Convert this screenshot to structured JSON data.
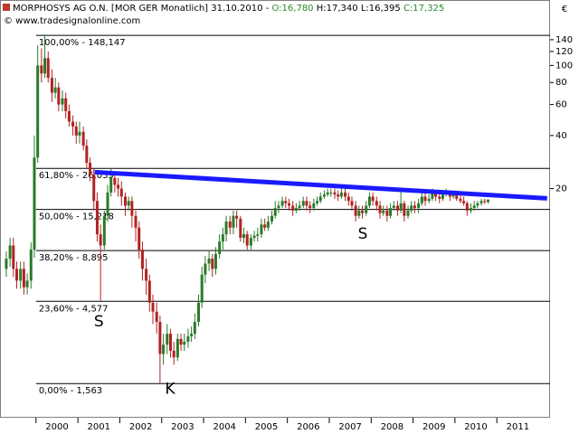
{
  "chart_data": {
    "type": "candlestick",
    "title": "MORPHOSYS AG O.N. [MOR GER Monatlich] 31.10.2010 -",
    "ohlc_labels": [
      "O:16,780",
      "H:17,340",
      "L:16,395",
      "C:17,325"
    ],
    "subtitle": "© www.tradesignalonline.com",
    "currency": "€",
    "up_color": "#2a7a2a",
    "down_color": "#b22222",
    "log_scale": true,
    "xlim": [
      1999.14,
      2012.27
    ],
    "xticks": [
      2000,
      2001,
      2002,
      2003,
      2004,
      2005,
      2006,
      2007,
      2008,
      2009,
      2010,
      2011
    ],
    "ylim": [
      1,
      165
    ],
    "yticks": [
      140,
      120,
      100,
      80,
      60,
      40,
      20
    ],
    "x": [
      1999.29,
      1999.38,
      1999.46,
      1999.54,
      1999.63,
      1999.71,
      1999.79,
      1999.88,
      1999.96,
      2000.04,
      2000.13,
      2000.21,
      2000.29,
      2000.38,
      2000.46,
      2000.54,
      2000.63,
      2000.71,
      2000.79,
      2000.88,
      2000.96,
      2001.04,
      2001.13,
      2001.21,
      2001.29,
      2001.38,
      2001.46,
      2001.54,
      2001.63,
      2001.71,
      2001.79,
      2001.88,
      2001.96,
      2002.04,
      2002.13,
      2002.21,
      2002.29,
      2002.38,
      2002.46,
      2002.54,
      2002.63,
      2002.71,
      2002.79,
      2002.88,
      2002.96,
      2003.04,
      2003.13,
      2003.21,
      2003.29,
      2003.38,
      2003.46,
      2003.54,
      2003.63,
      2003.71,
      2003.79,
      2003.88,
      2003.96,
      2004.04,
      2004.13,
      2004.21,
      2004.29,
      2004.38,
      2004.46,
      2004.54,
      2004.63,
      2004.71,
      2004.79,
      2004.88,
      2004.96,
      2005.04,
      2005.13,
      2005.21,
      2005.29,
      2005.38,
      2005.46,
      2005.54,
      2005.63,
      2005.71,
      2005.79,
      2005.88,
      2005.96,
      2006.04,
      2006.13,
      2006.21,
      2006.29,
      2006.38,
      2006.46,
      2006.54,
      2006.63,
      2006.71,
      2006.79,
      2006.88,
      2006.96,
      2007.04,
      2007.13,
      2007.21,
      2007.29,
      2007.38,
      2007.46,
      2007.54,
      2007.63,
      2007.71,
      2007.79,
      2007.88,
      2007.96,
      2008.04,
      2008.13,
      2008.21,
      2008.29,
      2008.38,
      2008.46,
      2008.54,
      2008.63,
      2008.71,
      2008.79,
      2008.88,
      2008.96,
      2009.04,
      2009.13,
      2009.21,
      2009.29,
      2009.38,
      2009.46,
      2009.54,
      2009.63,
      2009.71,
      2009.79,
      2009.88,
      2009.96,
      2010.04,
      2010.13,
      2010.21,
      2010.29,
      2010.38,
      2010.46,
      2010.54,
      2010.63,
      2010.71,
      2010.79
    ],
    "open": [
      7,
      8,
      9.5,
      7,
      6,
      7,
      5.5,
      6,
      9,
      30,
      100,
      90,
      110,
      85,
      70,
      75,
      60,
      65,
      55,
      48,
      45,
      40,
      42,
      35,
      28,
      24,
      17,
      11,
      9.5,
      14,
      19,
      23,
      21,
      20,
      18,
      16,
      17,
      14,
      12,
      9,
      7,
      6,
      4.5,
      4,
      3.5,
      2.3,
      2.6,
      3,
      2.4,
      2.2,
      2.8,
      2.6,
      2.7,
      2.9,
      3,
      3.5,
      4.5,
      6.5,
      7.5,
      8,
      7,
      8.5,
      10,
      11,
      13,
      12,
      14,
      13.5,
      10.5,
      11,
      9.5,
      10.5,
      10.8,
      11,
      12.5,
      12,
      13,
      14,
      15.5,
      16,
      17,
      16.5,
      16,
      15,
      15.5,
      16,
      17,
      16,
      15.5,
      16.5,
      17,
      18,
      18.5,
      19,
      19,
      18.5,
      18,
      19,
      18,
      17,
      16,
      14,
      15,
      14.5,
      16,
      18,
      17,
      16,
      14.5,
      15,
      14,
      15.5,
      16,
      15,
      16.5,
      14,
      15,
      16,
      15.5,
      16.5,
      18,
      17,
      17.5,
      19,
      18,
      17.5,
      18.5,
      19,
      18,
      18.5,
      17.5,
      17,
      16.5,
      15,
      15.5,
      16,
      16.5,
      17,
      16.78
    ],
    "high": [
      8.8,
      10.5,
      10.5,
      7.7,
      7.7,
      7.7,
      6.6,
      9.9,
      40,
      130,
      125,
      148.147,
      120,
      95,
      85,
      80,
      72,
      70,
      60,
      52,
      48,
      48,
      45,
      38,
      30,
      26,
      19,
      12.5,
      15,
      21,
      26,
      25,
      23,
      22,
      19,
      18,
      18,
      15,
      13,
      10,
      8,
      6.5,
      5,
      4.5,
      3.8,
      3,
      3.4,
      3.2,
      2.7,
      3,
      3,
      3,
      3.2,
      3.3,
      3.9,
      5,
      7.2,
      8.3,
      8.8,
      8.5,
      9.3,
      11,
      12,
      14,
      14,
      15,
      15,
      14,
      12,
      11.5,
      11,
      11.5,
      12,
      13.5,
      13.5,
      14,
      15,
      17,
      17,
      18,
      18,
      17.5,
      17,
      16.5,
      17,
      18,
      18,
      17,
      17.5,
      18,
      19,
      19.5,
      20,
      20,
      20,
      19.5,
      20,
      20,
      19,
      18,
      17,
      16,
      16,
      17,
      19,
      19,
      18,
      17,
      16,
      16,
      16.5,
      17,
      17,
      20,
      17,
      16,
      17,
      17,
      17.5,
      19,
      19,
      18.5,
      20,
      19.5,
      19,
      19.5,
      20,
      19.5,
      19.5,
      19,
      18.5,
      18,
      17,
      16.5,
      17,
      17,
      17.5,
      17.5,
      17.34
    ],
    "low": [
      6.3,
      7.2,
      6.3,
      5.4,
      5.4,
      5,
      5,
      5.4,
      8.1,
      28,
      80,
      85,
      80,
      62,
      65,
      55,
      55,
      50,
      45,
      40,
      36,
      36,
      33,
      26,
      22,
      15,
      10,
      4.6,
      9,
      13,
      18,
      19,
      18,
      16,
      14,
      15,
      12,
      10,
      8,
      6,
      5,
      4,
      3.4,
      3,
      1.563,
      2,
      2.3,
      2.2,
      2,
      2.1,
      2.4,
      2.4,
      2.5,
      2.7,
      2.8,
      3.3,
      4.2,
      5.8,
      6.8,
      6.3,
      6.5,
      8,
      9,
      10,
      11,
      11,
      12,
      10,
      9.8,
      9,
      9,
      10,
      10,
      10.5,
      11.5,
      11.5,
      12.5,
      13.5,
      14.5,
      15.5,
      15.5,
      15,
      14,
      14.5,
      15,
      15.5,
      15,
      14.5,
      15,
      16,
      16.5,
      17.5,
      18,
      18,
      17.5,
      17,
      17.5,
      17,
      16,
      15,
      13,
      13.5,
      13.5,
      14,
      15.5,
      16,
      15,
      13.5,
      14,
      13,
      13.5,
      15,
      14,
      14.5,
      13,
      13.5,
      14.5,
      14.5,
      14.5,
      16,
      16,
      16.5,
      17,
      17,
      16.5,
      17,
      18,
      17,
      17.5,
      17,
      16.5,
      16,
      14,
      14.5,
      15,
      15.5,
      16,
      16.3,
      16.395
    ],
    "close": [
      8,
      9.5,
      7,
      6,
      7,
      5.5,
      6,
      9,
      30,
      100,
      90,
      110,
      85,
      70,
      75,
      60,
      65,
      55,
      48,
      45,
      40,
      42,
      35,
      28,
      24,
      17,
      11,
      9.5,
      14,
      19,
      23,
      21,
      20,
      18,
      16,
      17,
      14,
      12,
      9,
      7,
      6,
      4.5,
      4,
      3.5,
      2.3,
      2.6,
      3,
      2.4,
      2.2,
      2.8,
      2.6,
      2.7,
      2.9,
      3,
      3.5,
      4.5,
      6.5,
      7.5,
      8,
      7,
      8.5,
      10,
      11,
      13,
      12,
      14,
      13.5,
      10.5,
      11,
      9.5,
      10.5,
      10.8,
      11,
      12.5,
      12,
      13,
      14,
      15.5,
      16,
      17,
      16.5,
      16,
      15,
      15.5,
      16,
      17,
      16,
      15.5,
      16.5,
      17,
      18,
      18.5,
      19,
      19,
      18.5,
      18,
      19,
      18,
      17,
      16,
      14,
      15,
      14.5,
      16,
      18,
      17,
      16,
      14.5,
      15,
      14,
      15.5,
      16,
      15,
      16.5,
      14,
      15,
      16,
      15.5,
      16.5,
      18,
      17,
      17.5,
      19,
      18,
      17.5,
      18.5,
      19,
      18,
      18.5,
      17.5,
      17,
      16.5,
      15,
      15.5,
      16,
      16.5,
      17,
      16.78,
      17.325
    ],
    "fib_levels": [
      {
        "value": 148.147,
        "label": "100,00% - 148,147"
      },
      {
        "value": 26.035,
        "label": "61,80% - 26,035"
      },
      {
        "value": 15.218,
        "label": "50,00% - 15,218"
      },
      {
        "value": 8.895,
        "label": "38,20% - 8,895"
      },
      {
        "value": 4.577,
        "label": "23,60% - 4,577"
      },
      {
        "value": 1.563,
        "label": "0,00% - 1,563"
      }
    ],
    "trendline": {
      "color": "#1a1aff",
      "x": [
        2001.4,
        2012.2
      ],
      "y": [
        24.8,
        17.6
      ]
    },
    "annotations": [
      {
        "text": "S",
        "x": 2001.5,
        "y": 3.5,
        "color": "#1a1aff"
      },
      {
        "text": "S",
        "x": 2007.8,
        "y": 11,
        "color": "#1a1aff"
      },
      {
        "text": "K",
        "x": 2003.2,
        "y": 1.45,
        "color": "#1a1aff"
      }
    ]
  }
}
